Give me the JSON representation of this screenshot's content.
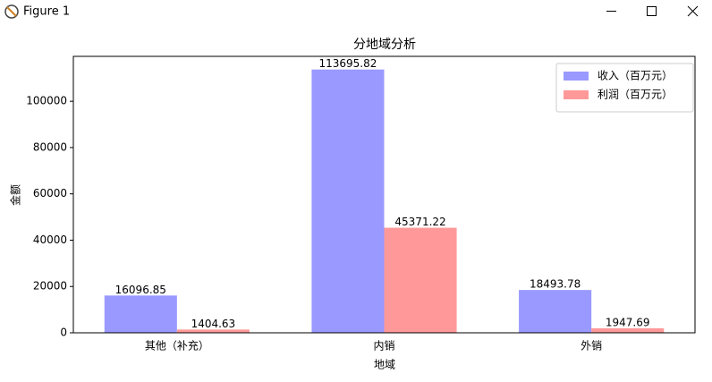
{
  "window_title": "Figure 1",
  "chart_data": {
    "type": "bar",
    "title": "分地域分析",
    "xlabel": "地域",
    "ylabel": "金额",
    "categories": [
      "其他（补充）",
      "内销",
      "外销"
    ],
    "series": [
      {
        "name": "收入（百万元）",
        "color": "#9999ff",
        "values": [
          16096.85,
          113695.82,
          18493.78
        ]
      },
      {
        "name": "利润（百万元）",
        "color": "#ff9999",
        "values": [
          1404.63,
          45371.22,
          1947.69
        ]
      }
    ],
    "ylim": [
      0,
      119380
    ],
    "yticks": [
      0,
      20000,
      40000,
      60000,
      80000,
      100000
    ],
    "legend": "upper right"
  }
}
